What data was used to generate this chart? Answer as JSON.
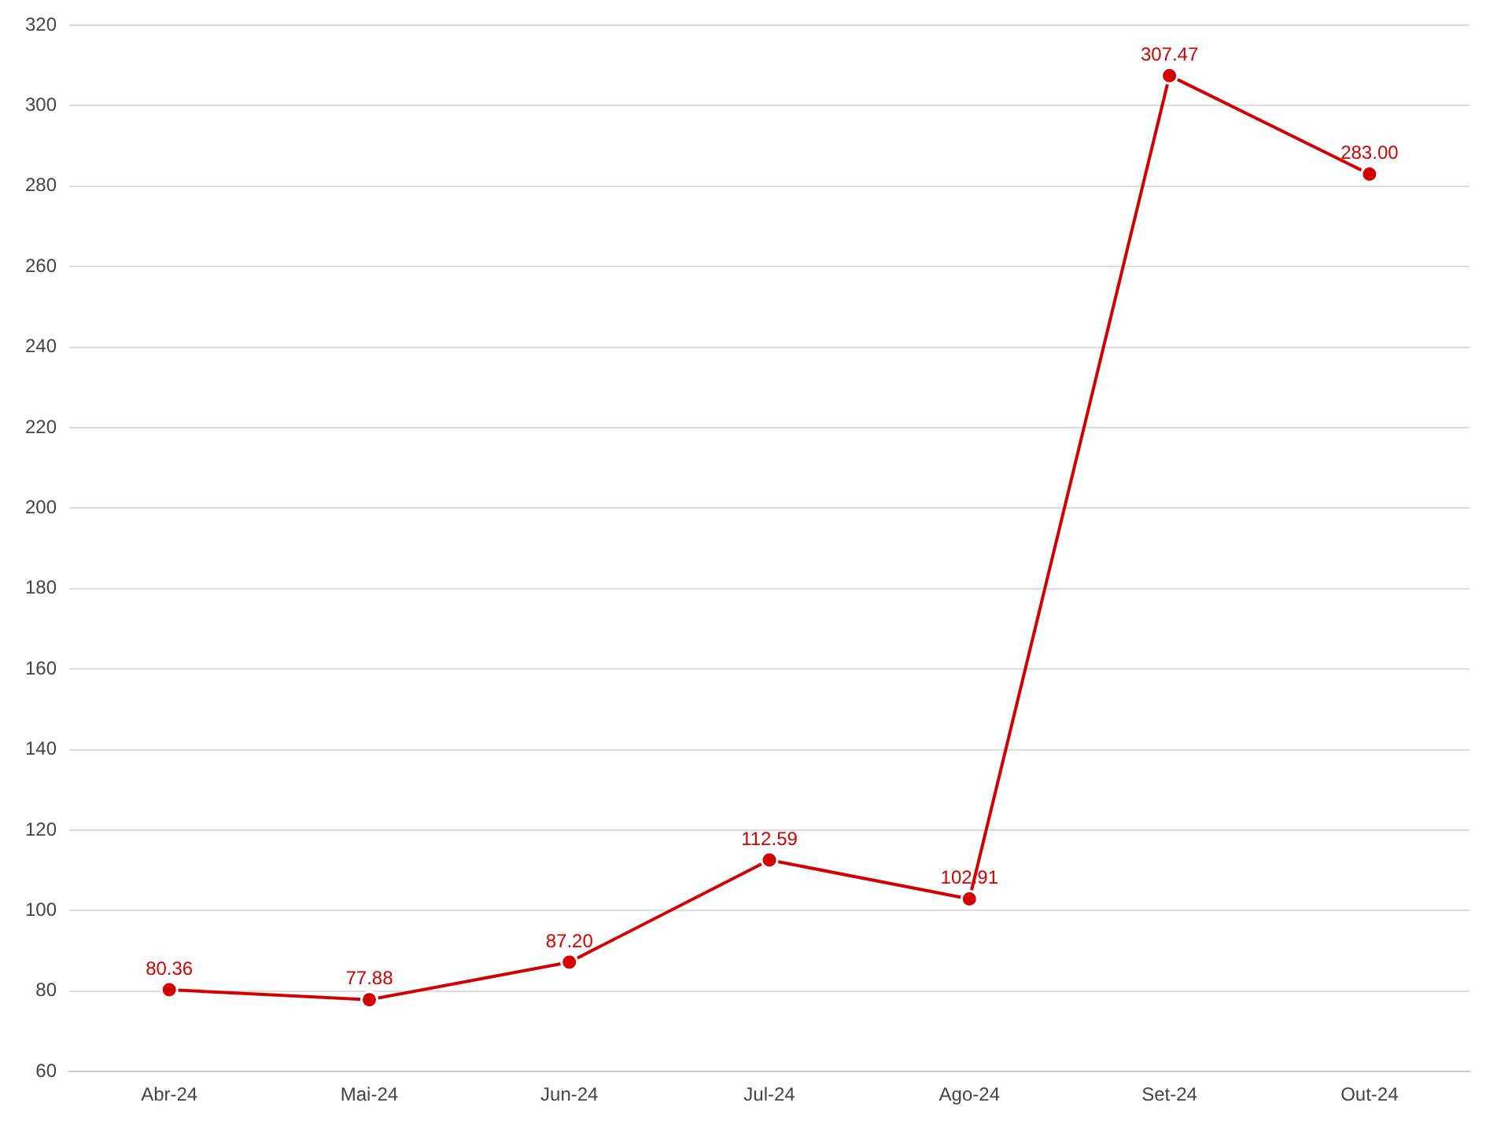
{
  "chart_data": {
    "type": "line",
    "categories": [
      "Abr-24",
      "Mai-24",
      "Jun-24",
      "Jul-24",
      "Ago-24",
      "Set-24",
      "Out-24"
    ],
    "series": [
      {
        "color": "#d40000",
        "values": [
          80.36,
          77.88,
          87.2,
          112.59,
          102.91,
          307.47,
          283.0
        ],
        "value_labels": [
          "80.36",
          "77.88",
          "87.20",
          "112.59",
          "102.91",
          "307.47",
          "283.00"
        ]
      }
    ],
    "ylim": [
      60,
      320
    ],
    "yticks": [
      60,
      80,
      100,
      120,
      140,
      160,
      180,
      200,
      220,
      240,
      260,
      280,
      300,
      320
    ],
    "grid": "y",
    "legend": false,
    "marker": "circle",
    "line_style": "solid"
  }
}
